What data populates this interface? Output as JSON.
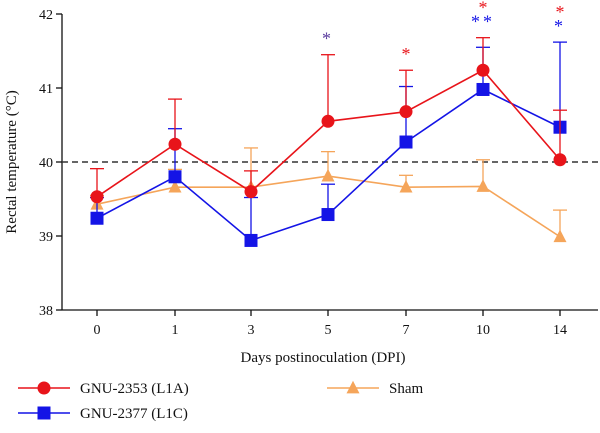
{
  "chart_data": {
    "type": "line",
    "xlabel": "Days postinoculation (DPI)",
    "ylabel": "Rectal temperature (°C)",
    "categories": [
      "0",
      "1",
      "3",
      "5",
      "7",
      "10",
      "14"
    ],
    "ylim": [
      38,
      42
    ],
    "yticks": [
      "38",
      "39",
      "40",
      "41",
      "42"
    ],
    "reference_line": {
      "value": 40,
      "style": "dashed"
    },
    "grid": false,
    "legend_position": "bottom",
    "series": [
      {
        "name": "GNU-2353 (L1A)",
        "color": "#e8141a",
        "marker": "circle",
        "values": [
          39.53,
          40.24,
          39.6,
          40.55,
          40.68,
          41.24,
          40.03
        ],
        "error_upper": [
          39.91,
          40.85,
          39.88,
          41.45,
          41.24,
          41.68,
          40.7
        ],
        "significance": [
          "",
          "",
          "",
          "",
          "*",
          "*",
          "*"
        ]
      },
      {
        "name": "GNU-2377 (L1C)",
        "color": "#1414e6",
        "marker": "square",
        "values": [
          39.24,
          39.8,
          38.94,
          39.29,
          40.27,
          40.98,
          40.47
        ],
        "error_upper": [
          39.52,
          40.45,
          39.52,
          39.7,
          41.02,
          41.55,
          41.62
        ],
        "significance": [
          "",
          "",
          "",
          "*",
          "",
          "**",
          "*"
        ]
      },
      {
        "name": "Sham",
        "color": "#f5a55a",
        "marker": "triangle",
        "values": [
          39.43,
          39.66,
          39.66,
          39.81,
          39.66,
          39.67,
          38.99
        ],
        "error_upper": [
          39.55,
          39.9,
          40.19,
          40.14,
          39.82,
          40.03,
          39.35
        ],
        "significance": [
          "",
          "",
          "",
          "",
          "",
          "",
          ""
        ]
      }
    ],
    "significance_colors": {
      "5": "#5a3c9e"
    }
  }
}
